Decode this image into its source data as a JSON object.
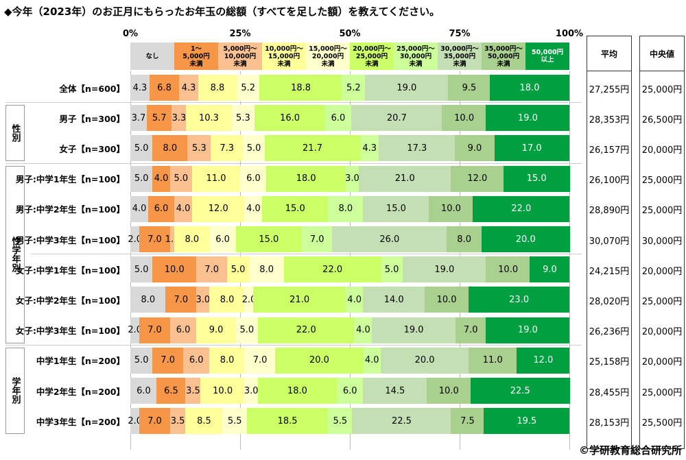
{
  "chart_data": {
    "type": "bar",
    "orientation": "horizontal",
    "stacked": true,
    "title": "◆今年（2023年）のお正月にもらったお年玉の総額（すべてを足した額）を教えてください。",
    "xlim": [
      0,
      100
    ],
    "x_ticks": [
      "0%",
      "25%",
      "50%",
      "75%",
      "100%"
    ],
    "legend_placement": "top",
    "legend": [
      {
        "name": "なし",
        "color": "#d9d9d9"
      },
      {
        "name": "1～\n5,000円\n未満",
        "color": "#f79646"
      },
      {
        "name": "5,000円～\n10,000円\n未満",
        "color": "#fac08f"
      },
      {
        "name": "10,000円～\n15,000円\n未満",
        "color": "#ffff99"
      },
      {
        "name": "15,000円～\n20,000円\n未満",
        "color": "#ffffcc"
      },
      {
        "name": "20,000円～\n25,000円\n未満",
        "color": "#ccff66"
      },
      {
        "name": "25,000円～\n30,000円\n未満",
        "color": "#ccff99"
      },
      {
        "name": "30,000円～\n35,000円\n未満",
        "color": "#c4dfb3"
      },
      {
        "name": "35,000円～\n50,000円\n未満",
        "color": "#a9d08e"
      },
      {
        "name": "50,000円\n以上",
        "color": "#00a040"
      }
    ],
    "categories": [
      "全体【n=600】",
      "男子【n=300】",
      "女子【n=300】",
      "男子:中学1年生【n=100】",
      "男子:中学2年生【n=100】",
      "男子:中学3年生【n=100】",
      "女子:中学1年生【n=100】",
      "女子:中学2年生【n=100】",
      "女子:中学3年生【n=100】",
      "中学1年生【n=200】",
      "中学2年生【n=200】",
      "中学3年生【n=200】"
    ],
    "values": [
      [
        4.3,
        6.8,
        4.3,
        8.8,
        5.2,
        18.8,
        5.2,
        19.0,
        9.5,
        18.0
      ],
      [
        3.7,
        5.7,
        3.3,
        10.3,
        5.3,
        16.0,
        6.0,
        20.7,
        10.0,
        19.0
      ],
      [
        5.0,
        8.0,
        5.3,
        7.3,
        5.0,
        21.7,
        4.3,
        17.3,
        9.0,
        17.0
      ],
      [
        5.0,
        4.0,
        5.0,
        11.0,
        6.0,
        18.0,
        3.0,
        21.0,
        12.0,
        15.0
      ],
      [
        4.0,
        6.0,
        4.0,
        12.0,
        4.0,
        15.0,
        8.0,
        15.0,
        10.0,
        22.0
      ],
      [
        2.0,
        7.0,
        1.0,
        8.0,
        6.0,
        15.0,
        7.0,
        26.0,
        8.0,
        20.0
      ],
      [
        5.0,
        10.0,
        7.0,
        5.0,
        8.0,
        22.0,
        5.0,
        19.0,
        10.0,
        9.0
      ],
      [
        8.0,
        7.0,
        3.0,
        8.0,
        2.0,
        21.0,
        4.0,
        14.0,
        10.0,
        23.0
      ],
      [
        2.0,
        7.0,
        6.0,
        9.0,
        5.0,
        22.0,
        4.0,
        19.0,
        7.0,
        19.0
      ],
      [
        5.0,
        7.0,
        6.0,
        8.0,
        7.0,
        20.0,
        4.0,
        20.0,
        11.0,
        12.0
      ],
      [
        6.0,
        6.5,
        3.5,
        10.0,
        3.0,
        18.0,
        6.0,
        14.5,
        10.0,
        22.5
      ],
      [
        2.0,
        7.0,
        3.5,
        8.5,
        5.5,
        18.5,
        5.5,
        22.5,
        7.5,
        19.5
      ]
    ],
    "groups": [
      {
        "label": "性別",
        "rows": [
          1,
          2
        ]
      },
      {
        "label": "性学年別",
        "rows": [
          3,
          4,
          5,
          6,
          7,
          8
        ]
      },
      {
        "label": "学年別",
        "rows": [
          9,
          10,
          11
        ]
      }
    ]
  },
  "table": {
    "mean_header": "平均",
    "median_header": "中央値",
    "mean": [
      "27,255円",
      "28,353円",
      "26,157円",
      "26,100円",
      "28,890円",
      "30,070円",
      "24,215円",
      "28,020円",
      "26,236円",
      "25,158円",
      "28,455円",
      "28,153円"
    ],
    "median": [
      "25,000円",
      "26,500円",
      "20,000円",
      "25,000円",
      "25,000円",
      "30,000円",
      "20,000円",
      "25,000円",
      "20,000円",
      "20,000円",
      "25,000円",
      "25,500円"
    ]
  },
  "copyright": "©学研教育総合研究所"
}
